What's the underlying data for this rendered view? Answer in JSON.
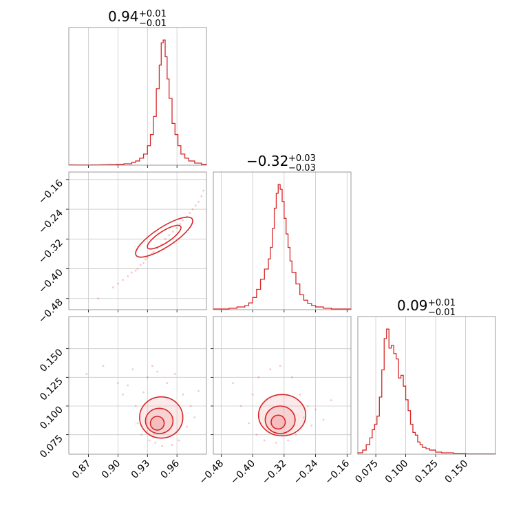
{
  "chart_data": [
    {
      "type": "histogram",
      "panel": "diag-0",
      "title": {
        "value": "0.94",
        "upper": "+0.01",
        "lower": "−0.01"
      },
      "xlim": [
        0.85,
        0.99
      ],
      "bins": [
        [
          0.85,
          0.858,
          0.2
        ],
        [
          0.858,
          0.866,
          0.1
        ],
        [
          0.866,
          0.874,
          0.1
        ],
        [
          0.874,
          0.882,
          0.2
        ],
        [
          0.882,
          0.89,
          0.3
        ],
        [
          0.89,
          0.898,
          0.4
        ],
        [
          0.898,
          0.906,
          0.6
        ],
        [
          0.906,
          0.914,
          1
        ],
        [
          0.914,
          0.918,
          2
        ],
        [
          0.918,
          0.922,
          3
        ],
        [
          0.922,
          0.926,
          5
        ],
        [
          0.926,
          0.93,
          8
        ],
        [
          0.93,
          0.933,
          14
        ],
        [
          0.933,
          0.936,
          22
        ],
        [
          0.936,
          0.939,
          35
        ],
        [
          0.939,
          0.942,
          55
        ],
        [
          0.942,
          0.944,
          72
        ],
        [
          0.944,
          0.946,
          88
        ],
        [
          0.946,
          0.948,
          90
        ],
        [
          0.948,
          0.95,
          78
        ],
        [
          0.95,
          0.952,
          62
        ],
        [
          0.952,
          0.955,
          48
        ],
        [
          0.955,
          0.958,
          30
        ],
        [
          0.958,
          0.961,
          22
        ],
        [
          0.961,
          0.964,
          14
        ],
        [
          0.964,
          0.968,
          8
        ],
        [
          0.968,
          0.972,
          5
        ],
        [
          0.972,
          0.978,
          3
        ],
        [
          0.978,
          0.985,
          1.5
        ],
        [
          0.985,
          0.99,
          0.6
        ]
      ]
    },
    {
      "type": "histogram",
      "panel": "diag-1",
      "title": {
        "value": "−0.32",
        "upper": "+0.03",
        "lower": "−0.03"
      },
      "xlim": [
        -0.5,
        -0.15
      ],
      "bins": [
        [
          -0.5,
          -0.48,
          1
        ],
        [
          -0.48,
          -0.46,
          1
        ],
        [
          -0.46,
          -0.44,
          2
        ],
        [
          -0.44,
          -0.42,
          4
        ],
        [
          -0.42,
          -0.41,
          6
        ],
        [
          -0.41,
          -0.4,
          10
        ],
        [
          -0.4,
          -0.39,
          18
        ],
        [
          -0.39,
          -0.38,
          30
        ],
        [
          -0.38,
          -0.37,
          45
        ],
        [
          -0.37,
          -0.36,
          60
        ],
        [
          -0.36,
          -0.355,
          75
        ],
        [
          -0.355,
          -0.35,
          92
        ],
        [
          -0.35,
          -0.345,
          120
        ],
        [
          -0.345,
          -0.34,
          150
        ],
        [
          -0.34,
          -0.335,
          172
        ],
        [
          -0.335,
          -0.33,
          185
        ],
        [
          -0.33,
          -0.325,
          178
        ],
        [
          -0.325,
          -0.32,
          160
        ],
        [
          -0.32,
          -0.315,
          135
        ],
        [
          -0.315,
          -0.31,
          112
        ],
        [
          -0.31,
          -0.305,
          92
        ],
        [
          -0.305,
          -0.3,
          72
        ],
        [
          -0.3,
          -0.29,
          55
        ],
        [
          -0.29,
          -0.28,
          38
        ],
        [
          -0.28,
          -0.27,
          22
        ],
        [
          -0.27,
          -0.26,
          14
        ],
        [
          -0.26,
          -0.25,
          9
        ],
        [
          -0.25,
          -0.24,
          6
        ],
        [
          -0.24,
          -0.22,
          4
        ],
        [
          -0.22,
          -0.2,
          2
        ],
        [
          -0.2,
          -0.15,
          1
        ]
      ]
    },
    {
      "type": "histogram",
      "panel": "diag-2",
      "title": {
        "value": "0.09",
        "upper": "+0.01",
        "lower": "−0.01"
      },
      "xlim": [
        0.06,
        0.175
      ],
      "bins": [
        [
          0.06,
          0.064,
          1
        ],
        [
          0.064,
          0.067,
          3
        ],
        [
          0.067,
          0.07,
          7
        ],
        [
          0.07,
          0.072,
          12
        ],
        [
          0.072,
          0.074,
          18
        ],
        [
          0.074,
          0.076,
          22
        ],
        [
          0.076,
          0.078,
          28
        ],
        [
          0.078,
          0.08,
          42
        ],
        [
          0.08,
          0.082,
          62
        ],
        [
          0.082,
          0.084,
          85
        ],
        [
          0.084,
          0.086,
          92
        ],
        [
          0.086,
          0.088,
          78
        ],
        [
          0.088,
          0.09,
          80
        ],
        [
          0.09,
          0.092,
          74
        ],
        [
          0.092,
          0.094,
          70
        ],
        [
          0.094,
          0.096,
          56
        ],
        [
          0.096,
          0.098,
          58
        ],
        [
          0.098,
          0.1,
          50
        ],
        [
          0.1,
          0.102,
          40
        ],
        [
          0.102,
          0.104,
          32
        ],
        [
          0.104,
          0.106,
          22
        ],
        [
          0.106,
          0.108,
          16
        ],
        [
          0.108,
          0.11,
          14
        ],
        [
          0.11,
          0.112,
          9
        ],
        [
          0.112,
          0.114,
          7
        ],
        [
          0.114,
          0.117,
          5
        ],
        [
          0.117,
          0.12,
          4
        ],
        [
          0.12,
          0.125,
          3
        ],
        [
          0.125,
          0.13,
          1.5
        ],
        [
          0.13,
          0.14,
          1
        ],
        [
          0.14,
          0.15,
          0.5
        ],
        [
          0.15,
          0.175,
          0.2
        ]
      ]
    },
    {
      "type": "scatter",
      "panel": "lower-1-0",
      "xlim": [
        0.85,
        0.99
      ],
      "ylim": [
        -0.51,
        -0.14
      ],
      "points": [
        [
          0.88,
          -0.48
        ],
        [
          0.895,
          -0.45
        ],
        [
          0.9,
          -0.44
        ],
        [
          0.905,
          -0.43
        ],
        [
          0.91,
          -0.42
        ],
        [
          0.914,
          -0.41
        ],
        [
          0.918,
          -0.405
        ],
        [
          0.92,
          -0.4
        ],
        [
          0.923,
          -0.39
        ],
        [
          0.926,
          -0.385
        ],
        [
          0.928,
          -0.375
        ],
        [
          0.93,
          -0.37
        ],
        [
          0.934,
          -0.36
        ],
        [
          0.936,
          -0.355
        ],
        [
          0.94,
          -0.345
        ],
        [
          0.944,
          -0.335
        ],
        [
          0.948,
          -0.32
        ],
        [
          0.952,
          -0.31
        ],
        [
          0.956,
          -0.3
        ],
        [
          0.96,
          -0.29
        ],
        [
          0.963,
          -0.28
        ],
        [
          0.966,
          -0.27
        ],
        [
          0.97,
          -0.26
        ],
        [
          0.973,
          -0.25
        ],
        [
          0.976,
          -0.24
        ],
        [
          0.979,
          -0.23
        ],
        [
          0.982,
          -0.22
        ],
        [
          0.985,
          -0.205
        ],
        [
          0.987,
          -0.19
        ]
      ],
      "contours": [
        {
          "center": [
            0.947,
            -0.315
          ],
          "rx": 0.02,
          "ry": 0.006,
          "angle": -33
        },
        {
          "center": [
            0.947,
            -0.315
          ],
          "rx": 0.034,
          "ry": 0.01,
          "angle": -33
        }
      ]
    },
    {
      "type": "scatter",
      "panel": "lower-2-0",
      "xlim": [
        0.85,
        0.99
      ],
      "ylim": [
        0.058,
        0.178
      ],
      "points": [
        [
          0.868,
          0.128
        ],
        [
          0.885,
          0.135
        ],
        [
          0.9,
          0.12
        ],
        [
          0.905,
          0.11
        ],
        [
          0.91,
          0.118
        ],
        [
          0.915,
          0.132
        ],
        [
          0.918,
          0.1
        ],
        [
          0.92,
          0.085
        ],
        [
          0.924,
          0.075
        ],
        [
          0.926,
          0.112
        ],
        [
          0.93,
          0.125
        ],
        [
          0.932,
          0.07
        ],
        [
          0.935,
          0.135
        ],
        [
          0.938,
          0.068
        ],
        [
          0.94,
          0.13
        ],
        [
          0.945,
          0.065
        ],
        [
          0.95,
          0.12
        ],
        [
          0.955,
          0.066
        ],
        [
          0.958,
          0.128
        ],
        [
          0.962,
          0.07
        ],
        [
          0.966,
          0.11
        ],
        [
          0.97,
          0.082
        ],
        [
          0.974,
          0.1
        ],
        [
          0.978,
          0.09
        ],
        [
          0.982,
          0.113
        ]
      ],
      "contours": [
        {
          "center": [
            0.944,
            0.09
          ],
          "rx": 0.022,
          "ry": 0.018,
          "angle": 0
        },
        {
          "center": [
            0.942,
            0.087
          ],
          "rx": 0.014,
          "ry": 0.011,
          "angle": 0
        },
        {
          "center": [
            0.94,
            0.085
          ],
          "rx": 0.007,
          "ry": 0.006,
          "angle": 0
        }
      ]
    },
    {
      "type": "scatter",
      "panel": "lower-2-1",
      "xlim": [
        -0.5,
        -0.15
      ],
      "ylim": [
        0.058,
        0.178
      ],
      "points": [
        [
          -0.45,
          0.12
        ],
        [
          -0.43,
          0.1
        ],
        [
          -0.41,
          0.085
        ],
        [
          -0.4,
          0.11
        ],
        [
          -0.39,
          0.075
        ],
        [
          -0.385,
          0.125
        ],
        [
          -0.37,
          0.07
        ],
        [
          -0.355,
          0.132
        ],
        [
          -0.34,
          0.068
        ],
        [
          -0.33,
          0.135
        ],
        [
          -0.31,
          0.07
        ],
        [
          -0.3,
          0.125
        ],
        [
          -0.29,
          0.075
        ],
        [
          -0.28,
          0.11
        ],
        [
          -0.27,
          0.09
        ],
        [
          -0.26,
          0.1
        ],
        [
          -0.25,
          0.083
        ],
        [
          -0.24,
          0.097
        ],
        [
          -0.22,
          0.088
        ],
        [
          -0.2,
          0.105
        ]
      ],
      "contours": [
        {
          "center": [
            -0.325,
            0.092
          ],
          "rx": 0.06,
          "ry": 0.018,
          "angle": 0
        },
        {
          "center": [
            -0.33,
            0.088
          ],
          "rx": 0.038,
          "ry": 0.012,
          "angle": 0
        },
        {
          "center": [
            -0.335,
            0.086
          ],
          "rx": 0.018,
          "ry": 0.006,
          "angle": 0
        }
      ]
    }
  ],
  "ticks": {
    "param0": [
      0.87,
      0.9,
      0.93,
      0.96
    ],
    "param1": [
      -0.48,
      -0.4,
      -0.32,
      -0.24,
      -0.16
    ],
    "param2": [
      0.075,
      0.1,
      0.125,
      0.15
    ]
  },
  "tick_labels": {
    "param0": [
      "0.87",
      "0.90",
      "0.93",
      "0.96"
    ],
    "param1_y": [
      "−0.16",
      "−0.24",
      "−0.32",
      "−0.40",
      "−0.48"
    ],
    "param1_x": [
      "−0.48",
      "−0.40",
      "−0.32",
      "−0.24",
      "−0.16"
    ],
    "param2_y": [
      "0.150",
      "0.125",
      "0.100",
      "0.075"
    ],
    "param2_x": [
      "0.075",
      "0.100",
      "0.125",
      "0.150"
    ]
  },
  "colors": {
    "line": "#d62728",
    "fill": "#f2a8a9",
    "grid": "#c8c8c8",
    "frame": "#808080"
  }
}
